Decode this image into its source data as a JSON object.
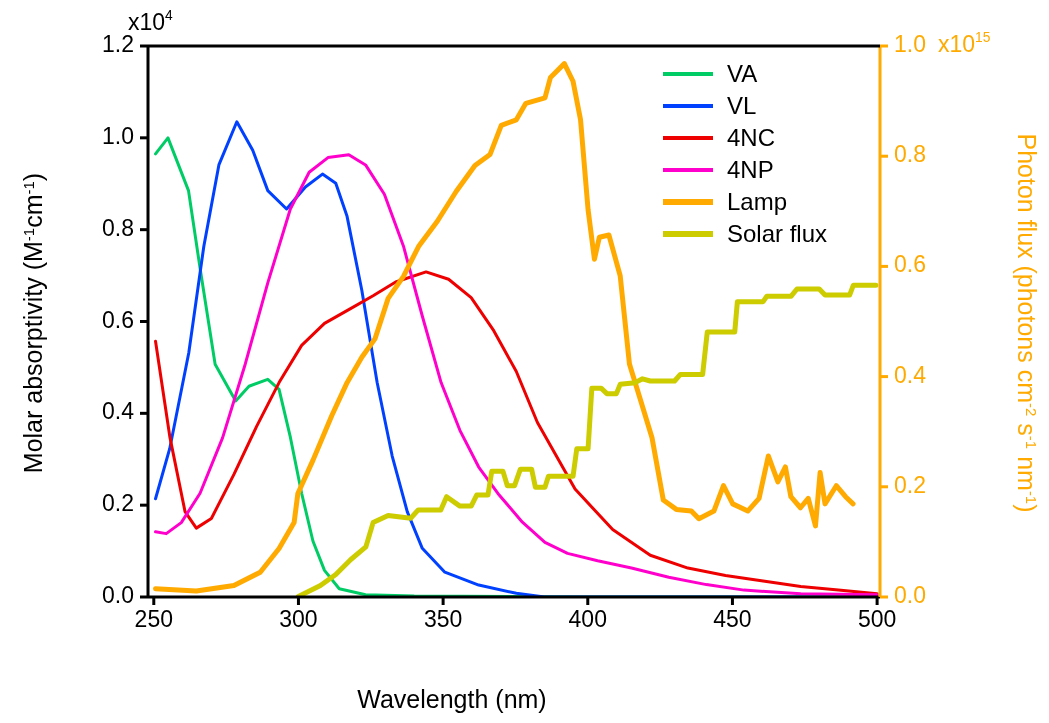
{
  "chart_data": {
    "type": "line",
    "xlabel": "Wavelength (nm)",
    "ylabel": "Molar absorptivity (M$^{-1}$cm$^{-1}$)",
    "y2label": "Photon flux (photons cm$^{-2}$ s$^{-1}$ nm$^{-1}$)",
    "xlim": [
      248,
      501
    ],
    "xticks": [
      250,
      300,
      350,
      400,
      450,
      500
    ],
    "ylim": [
      0,
      1.2
    ],
    "yticks": [
      {
        "value": 0,
        "label": "0.0"
      },
      {
        "value": 0.2,
        "label": "0.2"
      },
      {
        "value": 0.4,
        "label": "0.4"
      },
      {
        "value": 0.6,
        "label": "0.6"
      },
      {
        "value": 0.8,
        "label": "0.8"
      },
      {
        "value": 1,
        "label": "1.0"
      },
      {
        "value": 1.2,
        "label": "1.2"
      }
    ],
    "y2lim": [
      0,
      1
    ],
    "y2ticks": [
      {
        "value": 0,
        "label": "0.0"
      },
      {
        "value": 0.2,
        "label": "0.2"
      },
      {
        "value": 0.4,
        "label": "0.4"
      },
      {
        "value": 0.6,
        "label": "0.6"
      },
      {
        "value": 0.8,
        "label": "0.8"
      },
      {
        "value": 1,
        "label": "1.0"
      }
    ],
    "annotations": [
      "x10$^{4}$",
      "x10$^{15}$"
    ],
    "legend": "top right",
    "grid": false,
    "marker": "none",
    "line_style": "solid",
    "series": [
      {
        "name": "VA",
        "color": "#00cc66",
        "x": [
          250.6,
          254.9,
          262,
          266,
          271.2,
          278.3,
          282.9,
          289.4,
          293.3,
          297.2,
          301.1,
          305,
          309,
          314.1,
          323.2,
          340,
          400,
          500
        ],
        "values": [
          0.965,
          1.0,
          0.885,
          0.716,
          0.507,
          0.427,
          0.459,
          0.474,
          0.452,
          0.348,
          0.226,
          0.122,
          0.058,
          0.018,
          0.005,
          0.002,
          0.0,
          0.0
        ]
      },
      {
        "name": "VL",
        "color": "#0040ff",
        "x": [
          250.6,
          255.5,
          262.1,
          267.3,
          272.5,
          278.7,
          284.2,
          289.4,
          295.9,
          302.4,
          308.3,
          312.9,
          316.8,
          321.9,
          327.2,
          332.4,
          337.6,
          342.8,
          350.6,
          362.3,
          375.3,
          385,
          500
        ],
        "values": [
          0.214,
          0.323,
          0.532,
          0.764,
          0.941,
          1.035,
          0.973,
          0.885,
          0.845,
          0.893,
          0.921,
          0.901,
          0.829,
          0.668,
          0.467,
          0.307,
          0.186,
          0.106,
          0.054,
          0.026,
          0.008,
          0.0,
          0.0
        ]
      },
      {
        "name": "4NC",
        "color": "#ee0000",
        "x": [
          250.6,
          255.6,
          260.8,
          264.7,
          269.9,
          277.7,
          285.5,
          293.3,
          301.1,
          309,
          318,
          325.8,
          333.6,
          344.1,
          351.9,
          359.7,
          367.5,
          375.3,
          382.6,
          395.6,
          408.6,
          421.6,
          434.6,
          447.6,
          460.6,
          473.6,
          486.6,
          500
        ],
        "values": [
          0.557,
          0.347,
          0.186,
          0.15,
          0.171,
          0.267,
          0.371,
          0.467,
          0.548,
          0.596,
          0.628,
          0.656,
          0.686,
          0.708,
          0.692,
          0.652,
          0.58,
          0.491,
          0.38,
          0.235,
          0.147,
          0.091,
          0.063,
          0.047,
          0.035,
          0.023,
          0.015,
          0.007
        ]
      },
      {
        "name": "4NP",
        "color": "#ff00cc",
        "x": [
          250.6,
          254.3,
          259.5,
          266,
          273.8,
          281.6,
          289.4,
          297.2,
          303.7,
          310.2,
          317.4,
          323.2,
          329.7,
          336.3,
          342.8,
          349.3,
          355.8,
          362.3,
          369,
          377.4,
          385.2,
          393,
          403.4,
          415.1,
          428,
          441,
          454,
          473.6,
          500
        ],
        "values": [
          0.142,
          0.138,
          0.162,
          0.226,
          0.347,
          0.507,
          0.684,
          0.845,
          0.925,
          0.957,
          0.963,
          0.941,
          0.877,
          0.764,
          0.612,
          0.467,
          0.363,
          0.283,
          0.225,
          0.163,
          0.119,
          0.095,
          0.079,
          0.063,
          0.043,
          0.027,
          0.015,
          0.007,
          0.005
        ]
      },
      {
        "name": "Lamp",
        "color": "#ffaa00",
        "axis": "y2",
        "x": [
          250.6,
          264.7,
          277.7,
          286.8,
          293.3,
          298.5,
          299.8,
          305,
          311.5,
          316.8,
          321.9,
          326.5,
          331,
          336.3,
          341.5,
          348,
          354.5,
          361,
          366.2,
          370.1,
          375.3,
          378.6,
          385.2,
          387.1,
          391.9,
          394.9,
          397.5,
          400.1,
          402.3,
          404,
          407.3,
          411.2,
          414.4,
          418.3,
          422.2,
          426.1,
          430.6,
          435.8,
          438.4,
          443.6,
          446.9,
          450.1,
          455.3,
          459.2,
          462.4,
          465.7,
          468.3,
          470.2,
          473.5,
          476.2,
          478.7,
          480.3,
          482,
          485.9,
          489.1,
          491.7
        ],
        "values": [
          0.015,
          0.011,
          0.021,
          0.045,
          0.088,
          0.135,
          0.188,
          0.248,
          0.329,
          0.389,
          0.435,
          0.469,
          0.542,
          0.582,
          0.636,
          0.682,
          0.736,
          0.783,
          0.803,
          0.856,
          0.866,
          0.896,
          0.906,
          0.943,
          0.968,
          0.936,
          0.866,
          0.703,
          0.613,
          0.653,
          0.657,
          0.583,
          0.423,
          0.356,
          0.289,
          0.176,
          0.159,
          0.156,
          0.142,
          0.156,
          0.202,
          0.169,
          0.156,
          0.179,
          0.256,
          0.209,
          0.236,
          0.182,
          0.162,
          0.179,
          0.129,
          0.226,
          0.169,
          0.202,
          0.182,
          0.169
        ]
      },
      {
        "name": "Solar flux",
        "color": "#cccc00",
        "axis": "y2",
        "x": [
          300,
          307.6,
          312.9,
          318.1,
          323.3,
          325.8,
          331,
          338.8,
          341.4,
          349.2,
          351.2,
          355.8,
          359.7,
          361.6,
          365.5,
          366.8,
          370.7,
          372.2,
          374.7,
          376.7,
          380.6,
          381.9,
          385.2,
          386.4,
          394.9,
          396.2,
          400.1,
          401.4,
          404.6,
          406.6,
          409.9,
          411.2,
          416.4,
          418.9,
          421.6,
          430,
          432,
          439.7,
          441.3,
          450.8,
          451.7,
          460.6,
          461.9,
          470.3,
          472.3,
          480,
          482,
          490.5,
          491.8,
          499.6
        ],
        "values": [
          0.001,
          0.021,
          0.041,
          0.068,
          0.091,
          0.135,
          0.148,
          0.143,
          0.158,
          0.158,
          0.182,
          0.165,
          0.165,
          0.185,
          0.185,
          0.228,
          0.228,
          0.202,
          0.202,
          0.232,
          0.232,
          0.199,
          0.199,
          0.219,
          0.219,
          0.269,
          0.269,
          0.379,
          0.379,
          0.369,
          0.369,
          0.386,
          0.389,
          0.396,
          0.392,
          0.392,
          0.404,
          0.404,
          0.481,
          0.481,
          0.536,
          0.536,
          0.546,
          0.546,
          0.559,
          0.559,
          0.548,
          0.548,
          0.566,
          0.566
        ]
      }
    ]
  }
}
